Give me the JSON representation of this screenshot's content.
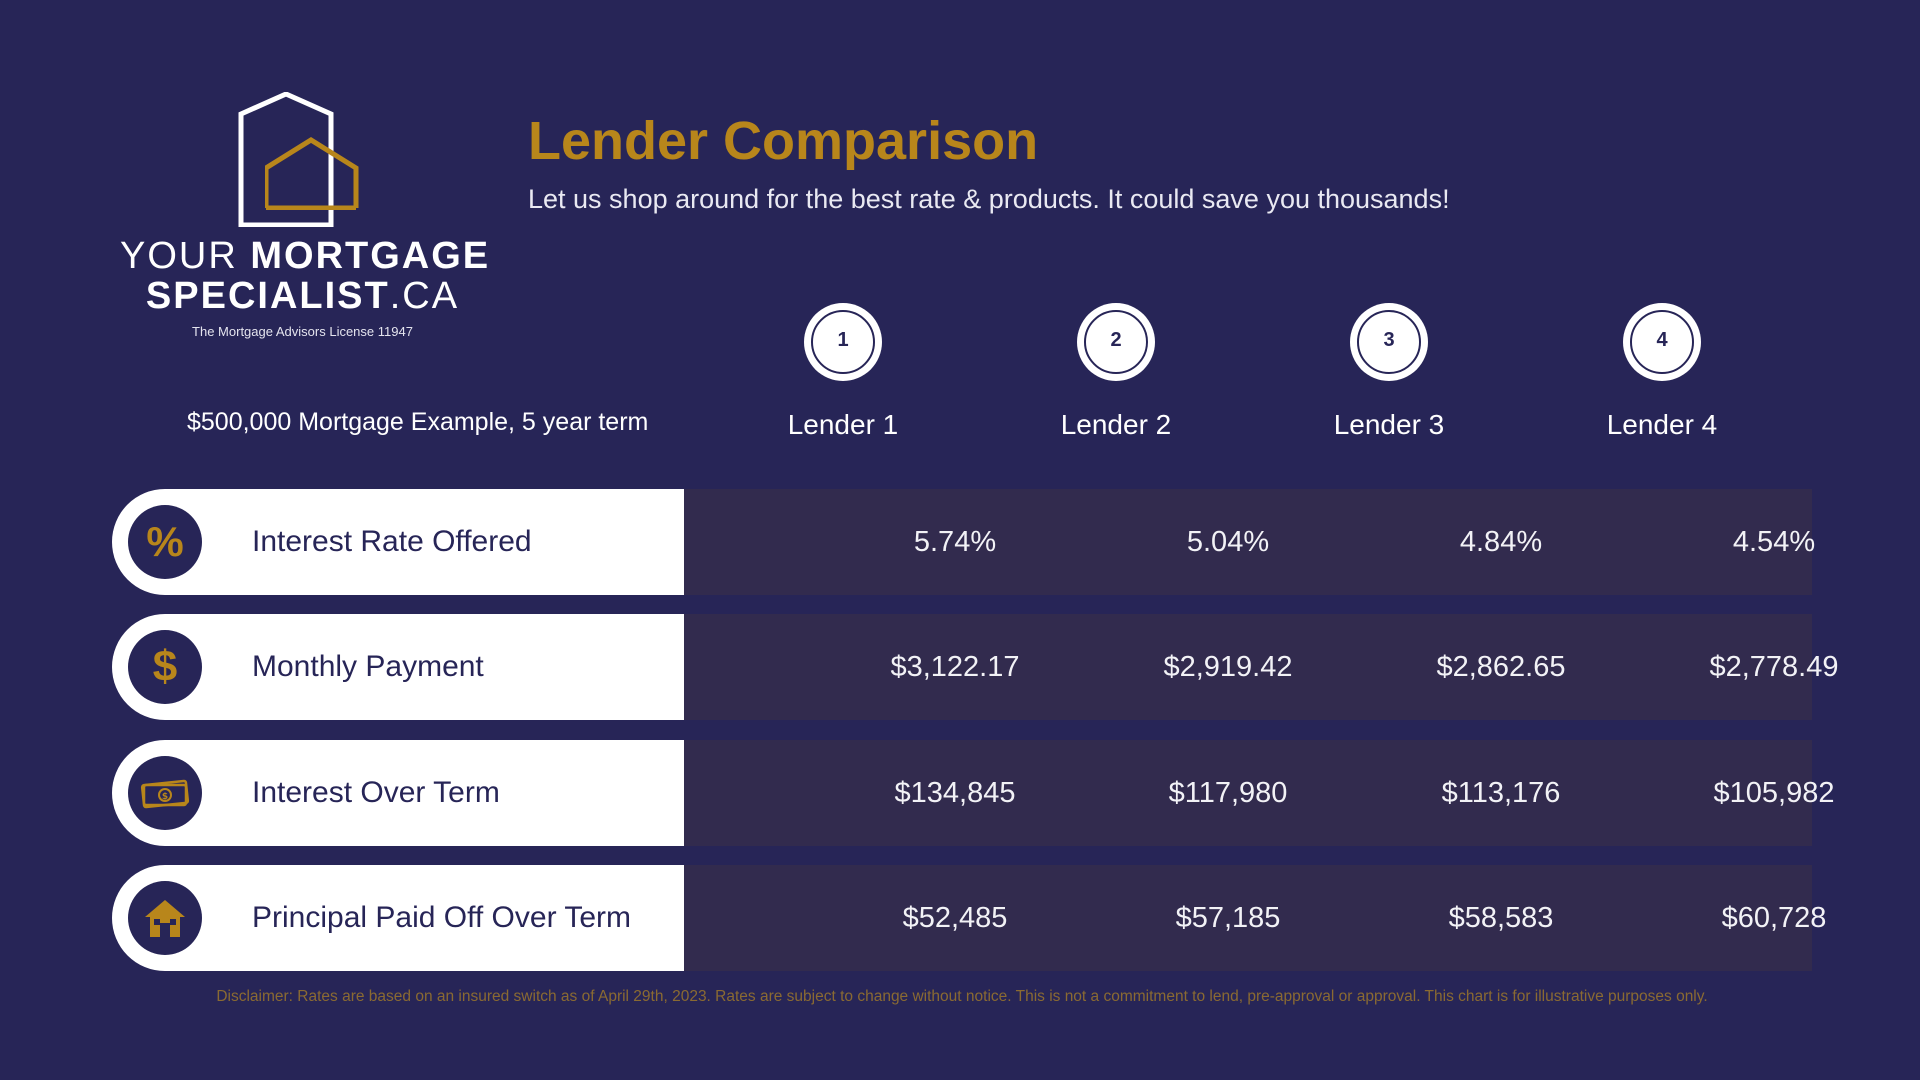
{
  "brand": {
    "name_line1_light": "YOUR ",
    "name_line1_bold": "MORTGAGE",
    "name_line2_bold": "SPECIALIST",
    "name_line2_light": ".CA",
    "license": "The Mortgage Advisors License 11947",
    "icon": "house-logo-icon"
  },
  "header": {
    "title": "Lender Comparison",
    "subtitle": "Let us shop around for the best rate & products. It could save you thousands!"
  },
  "example_label": "$500,000 Mortgage Example, 5 year term",
  "lenders": [
    {
      "number": "1",
      "name": "Lender 1"
    },
    {
      "number": "2",
      "name": "Lender 2"
    },
    {
      "number": "3",
      "name": "Lender 3"
    },
    {
      "number": "4",
      "name": "Lender 4"
    }
  ],
  "rows": [
    {
      "label": "Interest Rate Offered",
      "icon": "percent-icon",
      "values": [
        "5.74%",
        "5.04%",
        "4.84%",
        "4.54%"
      ]
    },
    {
      "label": "Monthly Payment",
      "icon": "dollar-icon",
      "values": [
        "$3,122.17",
        "$2,919.42",
        "$2,862.65",
        "$2,778.49"
      ]
    },
    {
      "label": "Interest Over Term",
      "icon": "cash-icon",
      "values": [
        "$134,845",
        "$117,980",
        "$113,176",
        "$105,982"
      ]
    },
    {
      "label": "Principal Paid Off Over Term",
      "icon": "home-icon",
      "values": [
        "$52,485",
        "$57,185",
        "$58,583",
        "$60,728"
      ]
    }
  ],
  "disclaimer": "Disclaimer: Rates are based on an insured switch as of April 29th, 2023. Rates are subject to change without notice. This is not a commitment to lend, pre-approval or approval. This chart is for illustrative purposes only.",
  "colors": {
    "background": "#272557",
    "accent_gold": "#b8861b",
    "value_panel": "#322b4e",
    "label_panel": "#ffffff"
  }
}
